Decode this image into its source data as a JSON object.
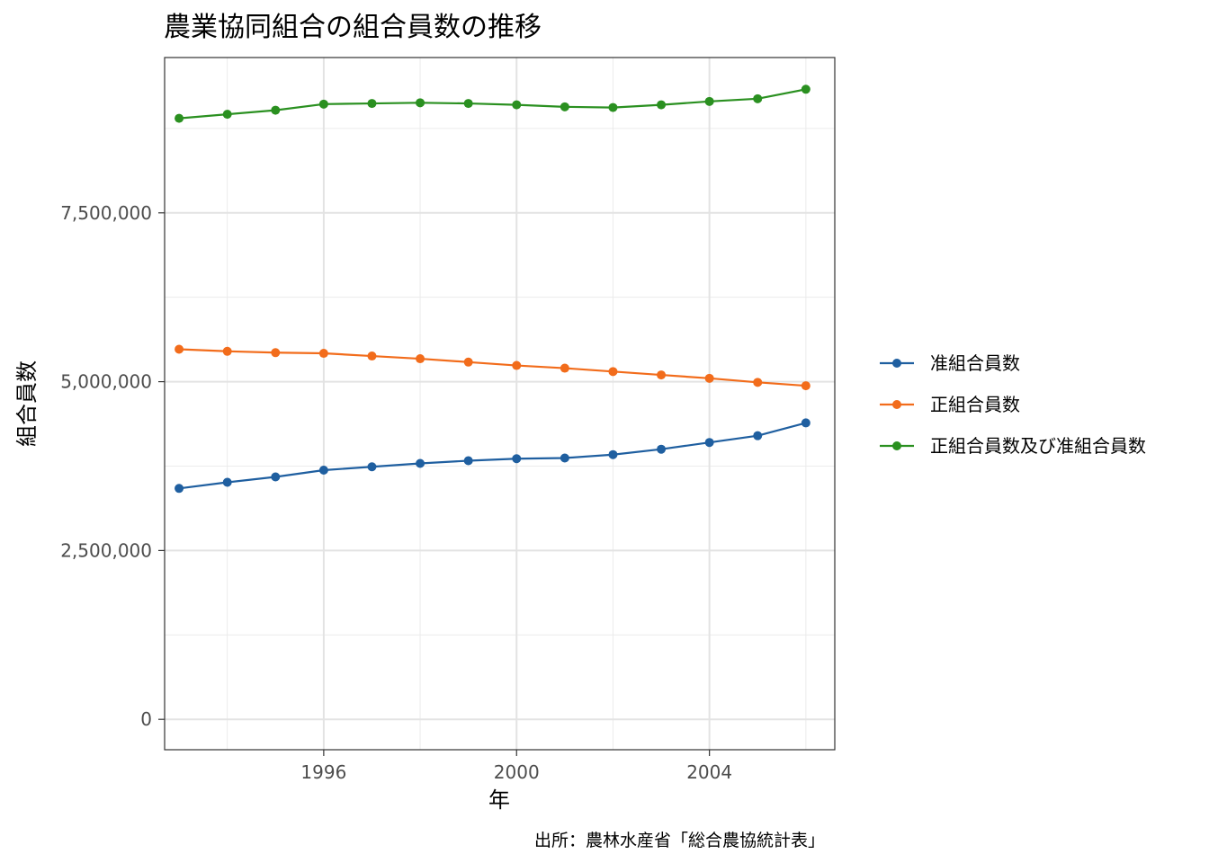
{
  "chart_data": {
    "type": "line",
    "title": "農業協同組合の組合員数の推移",
    "xlabel": "年",
    "ylabel": "組合員数",
    "caption": "出所：農林水産省「総合農協統計表」",
    "x": [
      1993,
      1994,
      1995,
      1996,
      1997,
      1998,
      1999,
      2000,
      2001,
      2002,
      2003,
      2004,
      2005,
      2006
    ],
    "xlim": [
      1992.7,
      2006.6
    ],
    "ylim": [
      -450000,
      9800000
    ],
    "x_ticks": [
      1996,
      2000,
      2004
    ],
    "x_tick_labels": [
      "1996",
      "2000",
      "2004"
    ],
    "x_minor_ticks": [
      1994,
      1998,
      2002,
      2006
    ],
    "y_ticks": [
      0,
      2500000,
      5000000,
      7500000
    ],
    "y_tick_labels": [
      "0",
      "2,500,000",
      "5,000,000",
      "7,500,000"
    ],
    "y_minor_ticks": [
      1250000,
      3750000,
      6250000,
      8750000
    ],
    "grid": true,
    "legend_position": "right",
    "series": [
      {
        "name": "准組合員数",
        "color": "#1f5fa0",
        "values": [
          3420000,
          3510000,
          3590000,
          3690000,
          3740000,
          3790000,
          3830000,
          3860000,
          3870000,
          3920000,
          4000000,
          4100000,
          4200000,
          4390000
        ]
      },
      {
        "name": "正組合員数",
        "color": "#f26c1b",
        "values": [
          5480000,
          5450000,
          5430000,
          5420000,
          5380000,
          5340000,
          5290000,
          5240000,
          5200000,
          5150000,
          5100000,
          5050000,
          4990000,
          4940000
        ]
      },
      {
        "name": "正組合員数及び准組合員数",
        "color": "#2a9020",
        "values": [
          8900000,
          8960000,
          9020000,
          9110000,
          9120000,
          9130000,
          9120000,
          9100000,
          9070000,
          9060000,
          9100000,
          9150000,
          9190000,
          9330000
        ]
      }
    ]
  }
}
